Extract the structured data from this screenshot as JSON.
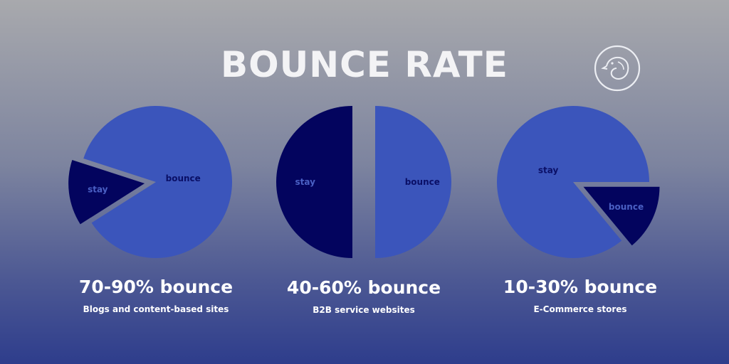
{
  "header": {
    "title": "BOUNCE RATE",
    "logo_icon": "bird-circle-icon"
  },
  "colors": {
    "bounce_light": "#3b55bb",
    "stay_dark": "#03045e",
    "label_on_light": "#0a0f66",
    "label_on_dark": "#4a60c4"
  },
  "chart_data": [
    {
      "type": "pie",
      "title": "70-90% bounce",
      "subtitle": "Blogs and content-based sites",
      "slices": [
        {
          "label": "bounce",
          "value": 86,
          "color": "#3b55bb",
          "exploded": false
        },
        {
          "label": "stay",
          "value": 14,
          "color": "#03045e",
          "exploded": true
        }
      ]
    },
    {
      "type": "pie",
      "title": "40-60% bounce",
      "subtitle": "B2B service websites",
      "slices": [
        {
          "label": "bounce",
          "value": 50,
          "color": "#3b55bb",
          "exploded": true
        },
        {
          "label": "stay",
          "value": 50,
          "color": "#03045e",
          "exploded": true
        }
      ]
    },
    {
      "type": "pie",
      "title": "10-30% bounce",
      "subtitle": "E-Commerce stores",
      "slices": [
        {
          "label": "bounce",
          "value": 14,
          "color": "#03045e",
          "exploded": true
        },
        {
          "label": "stay",
          "value": 86,
          "color": "#3b55bb",
          "exploded": false
        }
      ]
    }
  ]
}
